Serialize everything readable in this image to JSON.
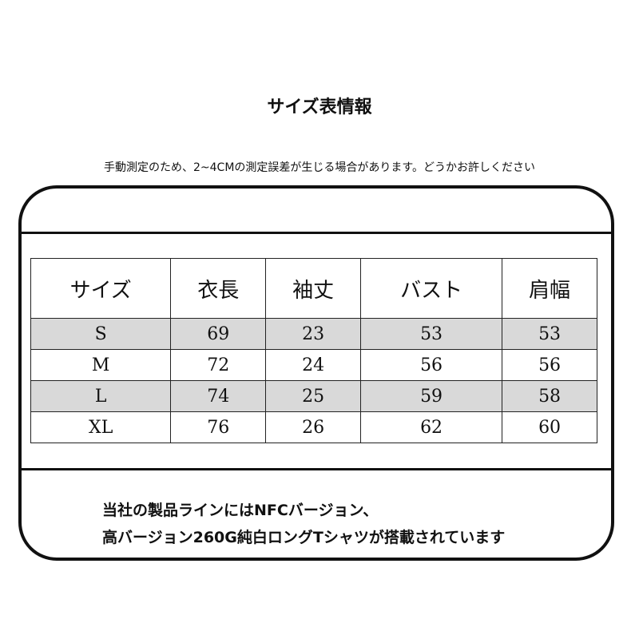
{
  "title": "サイズ表情報",
  "note": "手動測定のため、2~4CMの測定誤差が生じる場合があります。どうかお許しください",
  "table": {
    "headers": [
      "サイズ",
      "衣長",
      "袖丈",
      "バスト",
      "肩幅"
    ],
    "rows": [
      [
        "S",
        "69",
        "23",
        "53",
        "53"
      ],
      [
        "M",
        "72",
        "24",
        "56",
        "56"
      ],
      [
        "L",
        "74",
        "25",
        "59",
        "58"
      ],
      [
        "XL",
        "76",
        "26",
        "62",
        "60"
      ]
    ]
  },
  "footer": {
    "line1": "当社の製品ラインにはNFCバージョン、",
    "line2": "高バージョン260G純白ロングTシャツが搭載されています"
  },
  "colors": {
    "stripe": "#d9d9d9",
    "border": "#111111"
  }
}
